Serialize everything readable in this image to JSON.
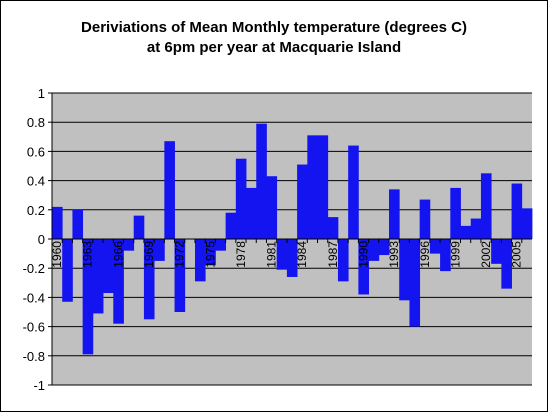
{
  "title_line_1": "Deriviations of Mean Monthly temperature (degrees C)",
  "title_line_2": "at 6pm per year at Macquarie Island",
  "chart_data": {
    "type": "bar",
    "title": "Deriviations of Mean Monthly temperature (degrees C) at 6pm per year at Macquarie Island",
    "xlabel": "",
    "ylabel": "",
    "ylim": [
      -1,
      1
    ],
    "y_ticks": [
      "1",
      "0.8",
      "0.6",
      "0.4",
      "0.2",
      "0",
      "-0.2",
      "-0.4",
      "-0.6",
      "-0.8",
      "-1"
    ],
    "x_tick_labels": [
      "1960",
      "1963",
      "1966",
      "1969",
      "1972",
      "1975",
      "1978",
      "1981",
      "1984",
      "1987",
      "1990",
      "1993",
      "1996",
      "1999",
      "2002",
      "2005"
    ],
    "grid": "horizontal",
    "legend": "none",
    "bar_color": "#1414f0",
    "plot_background": "#c0c0c0",
    "categories": [
      "1960",
      "1961",
      "1962",
      "1963",
      "1964",
      "1965",
      "1966",
      "1967",
      "1968",
      "1969",
      "1970",
      "1971",
      "1972",
      "1973",
      "1974",
      "1975",
      "1976",
      "1977",
      "1978",
      "1979",
      "1980",
      "1981",
      "1982",
      "1983",
      "1984",
      "1985",
      "1986",
      "1987",
      "1988",
      "1989",
      "1990",
      "1991",
      "1992",
      "1993",
      "1994",
      "1995",
      "1996",
      "1997",
      "1998",
      "1999",
      "2000",
      "2001",
      "2002",
      "2003",
      "2004",
      "2005",
      "2006"
    ],
    "values": [
      0.22,
      -0.43,
      0.2,
      -0.79,
      -0.51,
      -0.37,
      -0.58,
      -0.08,
      0.16,
      -0.55,
      -0.15,
      0.67,
      -0.5,
      0.0,
      -0.29,
      -0.18,
      -0.08,
      0.18,
      0.55,
      0.35,
      0.79,
      0.43,
      -0.21,
      -0.26,
      0.51,
      0.71,
      0.71,
      0.15,
      -0.29,
      0.64,
      -0.38,
      -0.15,
      -0.11,
      0.34,
      -0.42,
      -0.6,
      0.27,
      -0.1,
      -0.22,
      0.35,
      0.09,
      0.14,
      0.45,
      -0.17,
      -0.34,
      0.38,
      0.21
    ]
  }
}
